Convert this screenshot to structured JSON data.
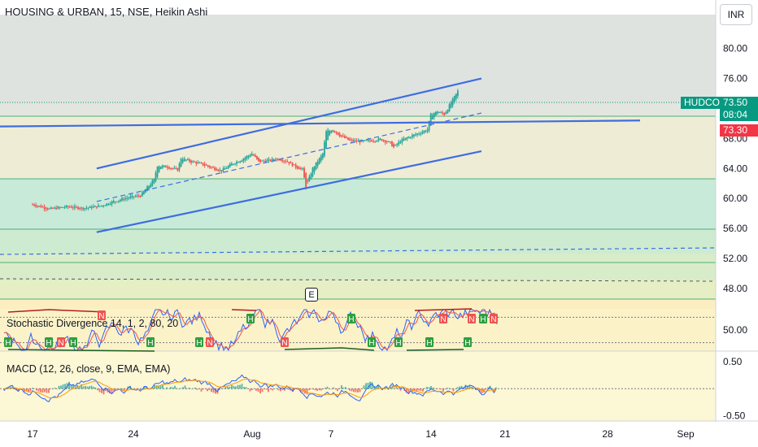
{
  "header": {
    "title": "HOUSING & URBAN, 15, NSE, Heikin Ashi",
    "currency_button": "INR"
  },
  "indicators": {
    "stoch_label": "Stochastic Divergence 14, 1, 2, 80, 20",
    "macd_label": "MACD (12, 26, close, 9, EMA, EMA)"
  },
  "price_tags": {
    "symbol": "HUDCO",
    "last_price": "73.50",
    "countdown": "08:04",
    "line_price": "73.30"
  },
  "event_marker": "E",
  "colors": {
    "bull": "#26a69a",
    "bear": "#ef5350",
    "trendline": "#3d6de0",
    "macd_line": "#2962ff",
    "signal_line": "#ff9800",
    "tag_green": "#089981",
    "tag_red": "#f23645"
  },
  "chart_data": [
    {
      "type": "candlestick",
      "y_ticks": [
        "80.00",
        "76.00",
        "72.00",
        "68.00",
        "64.00",
        "60.00",
        "56.00",
        "52.00",
        "48.00"
      ],
      "x_ticks": [
        "17",
        "24",
        "Aug",
        "7",
        "14",
        "21",
        "28",
        "Sep"
      ],
      "ylim": [
        45.5,
        83
      ],
      "close_path": [
        [
          0,
          59.2
        ],
        [
          5,
          58.6
        ],
        [
          10,
          58.9
        ],
        [
          15,
          58.7
        ],
        [
          20,
          59.0
        ],
        [
          24,
          59.6
        ],
        [
          28,
          60.1
        ],
        [
          32,
          60.4
        ],
        [
          36,
          62.5
        ],
        [
          37,
          64.4
        ],
        [
          40,
          64.2
        ],
        [
          43,
          63.8
        ],
        [
          44,
          65.4
        ],
        [
          47,
          64.9
        ],
        [
          50,
          64.6
        ],
        [
          53,
          64.1
        ],
        [
          56,
          63.7
        ],
        [
          59,
          64.6
        ],
        [
          62,
          65.2
        ],
        [
          65,
          66.0
        ],
        [
          67,
          64.9
        ],
        [
          70,
          65.1
        ],
        [
          73,
          65.3
        ],
        [
          76,
          64.8
        ],
        [
          78,
          64.2
        ],
        [
          80,
          63.9
        ],
        [
          81,
          61.5
        ],
        [
          83,
          64.0
        ],
        [
          86,
          66.0
        ],
        [
          87,
          68.9
        ],
        [
          89,
          69.2
        ],
        [
          91,
          68.4
        ],
        [
          94,
          67.7
        ],
        [
          97,
          67.6
        ],
        [
          100,
          67.7
        ],
        [
          103,
          67.9
        ],
        [
          106,
          67.4
        ],
        [
          107,
          66.8
        ],
        [
          109,
          67.7
        ],
        [
          112,
          68.3
        ],
        [
          115,
          68.8
        ],
        [
          117,
          69.2
        ],
        [
          118,
          71.2
        ],
        [
          120,
          71.6
        ],
        [
          122,
          71.2
        ],
        [
          124,
          72.8
        ],
        [
          126,
          74.3
        ]
      ],
      "trendlines": {
        "channel_upper": [
          [
            19,
            64.0
          ],
          [
            133,
            76.0
          ]
        ],
        "channel_lower": [
          [
            19,
            55.5
          ],
          [
            133,
            66.3
          ]
        ],
        "channel_mid": [
          [
            19,
            59.6
          ],
          [
            133,
            71.4
          ]
        ],
        "horizontal": [
          [
            -10,
            69.6
          ],
          [
            180,
            70.4
          ]
        ]
      }
    },
    {
      "type": "line",
      "name": "stochastic",
      "y_ticks": [
        "50.00"
      ],
      "ylim": [
        0,
        100
      ],
      "levels": [
        80,
        20
      ],
      "labels": [
        "H",
        "H",
        "N",
        "H",
        "N",
        "H",
        "H",
        "N",
        "H",
        "N",
        "H",
        "H",
        "H",
        "H",
        "N",
        "H",
        "N",
        "H",
        "N"
      ]
    },
    {
      "type": "line",
      "name": "macd",
      "y_ticks": [
        "0.50",
        "-0.50"
      ],
      "ylim": [
        -0.6,
        0.7
      ]
    }
  ]
}
